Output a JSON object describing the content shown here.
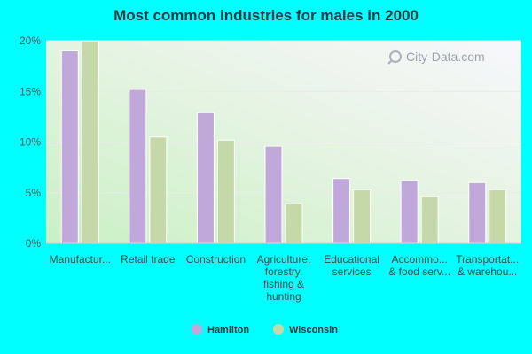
{
  "chart_data": {
    "type": "bar",
    "title": "Most common industries for males in 2000",
    "categories": [
      [
        "Manufactur..."
      ],
      [
        "Retail trade"
      ],
      [
        "Construction"
      ],
      [
        "Agriculture,",
        "forestry,",
        "fishing &",
        "hunting"
      ],
      [
        "Educational",
        "services"
      ],
      [
        "Accommo...",
        "& food serv..."
      ],
      [
        "Transportat...",
        "& warehou..."
      ]
    ],
    "series": [
      {
        "name": "Hamilton",
        "color": "#c0a8da",
        "values": [
          19.0,
          15.2,
          12.9,
          9.6,
          6.4,
          6.2,
          6.0
        ]
      },
      {
        "name": "Wisconsin",
        "color": "#c5d9a8",
        "values": [
          20.0,
          10.5,
          10.2,
          3.9,
          5.3,
          4.6,
          5.3
        ]
      }
    ],
    "ylim": [
      0,
      20
    ],
    "yticks": [
      "0%",
      "5%",
      "10%",
      "15%",
      "20%"
    ],
    "ytick_values": [
      0,
      5,
      10,
      15,
      20
    ],
    "legend_position": "bottom",
    "grid": true,
    "watermark": "City-Data.com"
  }
}
